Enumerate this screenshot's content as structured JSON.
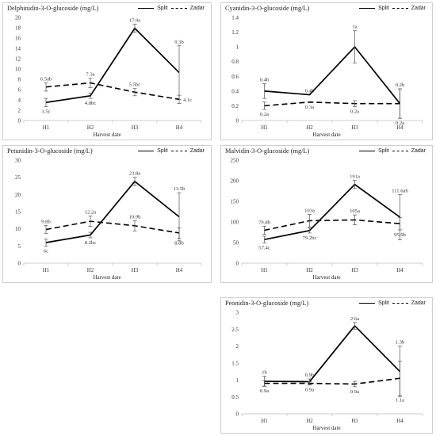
{
  "x_axis_label": "Harvest date",
  "legend": [
    {
      "name": "Split",
      "style": "solid"
    },
    {
      "name": "Zadar",
      "style": "dashed"
    }
  ],
  "chart_data": [
    {
      "id": "delphinidin",
      "type": "line",
      "title": "Delphinidin-3-O-glucoside (mg/L)",
      "xlabel": "Harvest date",
      "categories": [
        "H1",
        "H2",
        "H3",
        "H4"
      ],
      "ylim": [
        0,
        20
      ],
      "yticks": [
        0,
        2,
        4,
        6,
        8,
        10,
        12,
        14,
        16,
        18,
        20
      ],
      "legend_position": "top-right",
      "series": [
        {
          "name": "Split",
          "style": "solid",
          "values": [
            3.5,
            4.8,
            17.9,
            9.3
          ],
          "errors": [
            0.8,
            0.5,
            0.8,
            5.2
          ],
          "labels": [
            "3.5c",
            "4.8bc",
            "17.9a",
            "9.3b"
          ],
          "label_pos": [
            "below",
            "below",
            "above",
            "above"
          ]
        },
        {
          "name": "Zadar",
          "style": "dashed",
          "values": [
            6.5,
            7.3,
            5.5,
            4.1
          ],
          "errors": [
            0.8,
            0.9,
            0.7,
            0.8
          ],
          "labels": [
            "6.5ab",
            "7.3a",
            "5.5bc",
            "4.1c"
          ],
          "label_pos": [
            "above",
            "above",
            "above",
            "right"
          ]
        }
      ]
    },
    {
      "id": "cyanidin",
      "type": "line",
      "title": "Cyanidin-3-O-glucoside (mg/L)",
      "xlabel": "Harvest date",
      "categories": [
        "H1",
        "H2",
        "H3",
        "H4"
      ],
      "ylim": [
        0,
        1.4
      ],
      "yticks": [
        0,
        0.2,
        0.4,
        0.6,
        0.8,
        1,
        1.2,
        1.4
      ],
      "legend_position": "top-right",
      "series": [
        {
          "name": "Split",
          "style": "solid",
          "values": [
            0.4,
            0.35,
            1.0,
            0.23
          ],
          "errors": [
            0.1,
            0.0,
            0.22,
            0.2
          ],
          "labels": [
            "0.4b",
            "0.4b",
            "1a",
            "0.2b"
          ],
          "label_pos": [
            "above",
            "above",
            "above",
            "above"
          ]
        },
        {
          "name": "Zadar",
          "style": "dashed",
          "values": [
            0.2,
            0.25,
            0.23,
            0.23
          ],
          "errors": [
            0.05,
            0.0,
            0.04,
            0.2
          ],
          "labels": [
            "0.2a",
            "0.3a",
            "0.2a",
            "0.2a"
          ],
          "label_pos": [
            "below",
            "below",
            "below",
            "below"
          ]
        }
      ]
    },
    {
      "id": "petunidin",
      "type": "line",
      "title": "Petunidin-3-O-glucoside (mg/L)",
      "xlabel": "Harvest date",
      "categories": [
        "H1",
        "H2",
        "H3",
        "H4"
      ],
      "ylim": [
        0,
        30
      ],
      "yticks": [
        0,
        5,
        10,
        15,
        20,
        25,
        30
      ],
      "legend_position": "top-right",
      "series": [
        {
          "name": "Split",
          "style": "solid",
          "values": [
            6,
            8.2,
            23.8,
            13.5
          ],
          "errors": [
            1.0,
            0.8,
            1.2,
            7.0
          ],
          "labels": [
            "6c",
            "8.2bc",
            "23.8a",
            "13.5b"
          ],
          "label_pos": [
            "below",
            "below",
            "above",
            "above"
          ]
        },
        {
          "name": "Zadar",
          "style": "dashed",
          "values": [
            9.8,
            12.2,
            10.9,
            8.8
          ],
          "errors": [
            1.2,
            1.5,
            1.5,
            1.5
          ],
          "labels": [
            "9.8b",
            "12.2a",
            "10.9b",
            "8.8b"
          ],
          "label_pos": [
            "above",
            "above",
            "above",
            "below"
          ]
        }
      ]
    },
    {
      "id": "malvidin",
      "type": "line",
      "title": "Malvidin-3-O-glucoside (mg/L)",
      "xlabel": "Harvest date",
      "categories": [
        "H1",
        "H2",
        "H3",
        "H4"
      ],
      "ylim": [
        0,
        250
      ],
      "yticks": [
        0,
        50,
        100,
        150,
        200,
        250
      ],
      "legend_position": "top-right",
      "series": [
        {
          "name": "Split",
          "style": "solid",
          "values": [
            57.4,
            79.2,
            191,
            111.6
          ],
          "errors": [
            8,
            6,
            10,
            55
          ],
          "labels": [
            "57.4c",
            "79.2bc",
            "191a",
            "111.6ab"
          ],
          "label_pos": [
            "below",
            "below",
            "above",
            "above"
          ]
        },
        {
          "name": "Zadar",
          "style": "dashed",
          "values": [
            79.8,
            103,
            105,
            95.9
          ],
          "errors": [
            10,
            15,
            12,
            15
          ],
          "labels": [
            "79.8b",
            "103a",
            "105a",
            "95.9b"
          ],
          "label_pos": [
            "above",
            "above",
            "above",
            "below"
          ]
        }
      ]
    },
    {
      "id": "peonidin",
      "type": "line",
      "title": "Peonidin-3-O-glucoside (mg/L)",
      "xlabel": "Harvest date",
      "categories": [
        "H1",
        "H2",
        "H3",
        "H4"
      ],
      "ylim": [
        0,
        3
      ],
      "yticks": [
        0,
        0.5,
        1,
        1.5,
        2,
        2.5,
        3
      ],
      "legend_position": "top-right",
      "series": [
        {
          "name": "Split",
          "style": "solid",
          "values": [
            0.96,
            0.95,
            2.6,
            1.25
          ],
          "errors": [
            0.15,
            0.08,
            0.1,
            0.75
          ],
          "labels": [
            "1b",
            "0.9b",
            "2.6a",
            "1.3b"
          ],
          "label_pos": [
            "above",
            "above",
            "above",
            "above"
          ]
        },
        {
          "name": "Zadar",
          "style": "dashed",
          "values": [
            0.9,
            0.9,
            0.88,
            1.05
          ],
          "errors": [
            0.08,
            0.05,
            0.08,
            0.5
          ],
          "labels": [
            "0.9a",
            "0.9a",
            "0.9a",
            "1.1a"
          ],
          "label_pos": [
            "below",
            "below",
            "below",
            "below"
          ]
        }
      ]
    }
  ]
}
